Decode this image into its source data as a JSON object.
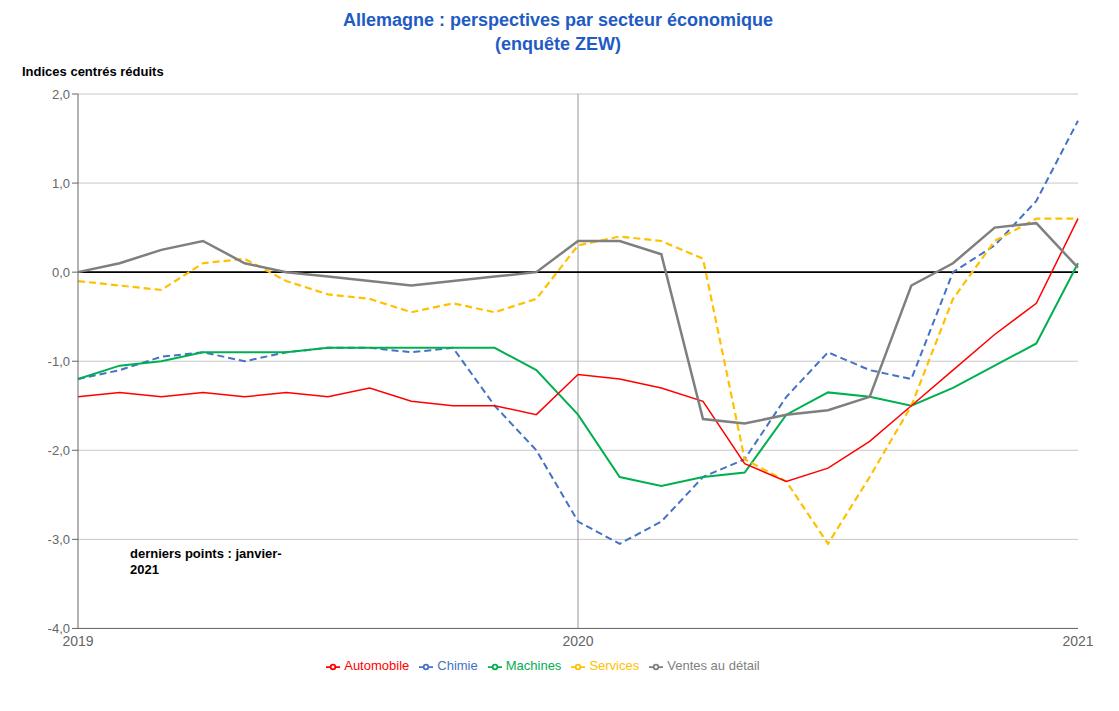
{
  "chart_data": {
    "type": "line",
    "title": "Allemagne : perspectives par secteur économique\n(enquête ZEW)",
    "y_label": "Indices centrés réduits",
    "annotation": "derniers points : janvier-\n2021",
    "title_color": "#1F5BC4",
    "categories": [
      "2019",
      null,
      null,
      null,
      null,
      null,
      null,
      null,
      null,
      null,
      null,
      null,
      "2020",
      null,
      null,
      null,
      null,
      null,
      null,
      null,
      null,
      null,
      null,
      null,
      "2021"
    ],
    "series": [
      {
        "name": "Chimie",
        "color": "#4472C4",
        "line_style": "dashed",
        "values": [
          -1.2,
          -1.1,
          -0.95,
          -0.9,
          -1.0,
          -0.9,
          -0.85,
          -0.85,
          -0.9,
          -0.85,
          -1.5,
          -2.0,
          -2.8,
          -3.05,
          -2.8,
          -2.3,
          -2.1,
          -1.4,
          -0.9,
          -1.1,
          -1.2,
          0.0,
          0.3,
          0.8,
          1.7
        ]
      },
      {
        "name": "Machines",
        "color": "#00B050",
        "line_style": "solid",
        "values": [
          -1.2,
          -1.05,
          -1.0,
          -0.9,
          -0.9,
          -0.9,
          -0.85,
          -0.85,
          -0.85,
          -0.85,
          -0.85,
          -1.1,
          -1.6,
          -2.3,
          -2.4,
          -2.3,
          -2.25,
          -1.6,
          -1.35,
          -1.4,
          -1.5,
          -1.3,
          -1.05,
          -0.8,
          0.1
        ]
      },
      {
        "name": "Services",
        "color": "#FFC000",
        "line_style": "dashed",
        "values": [
          -0.1,
          -0.15,
          -0.2,
          0.1,
          0.15,
          -0.1,
          -0.25,
          -0.3,
          -0.45,
          -0.35,
          -0.45,
          -0.3,
          0.3,
          0.4,
          0.35,
          0.15,
          -2.1,
          -2.35,
          -3.05,
          -2.3,
          -1.5,
          -0.3,
          0.35,
          0.6,
          0.6
        ]
      },
      {
        "name": "Automobile",
        "color": "#FF0000",
        "line_style": "solid",
        "values": [
          -1.4,
          -1.35,
          -1.4,
          -1.35,
          -1.4,
          -1.35,
          -1.4,
          -1.3,
          -1.45,
          -1.5,
          -1.5,
          -1.6,
          -1.15,
          -1.2,
          -1.3,
          -1.45,
          -2.15,
          -2.35,
          -2.2,
          -1.9,
          -1.5,
          -1.1,
          -0.7,
          -0.35,
          0.6
        ]
      },
      {
        "name": "Ventes au détail",
        "color": "#7F7F7F",
        "line_style": "solid",
        "values": [
          0.0,
          0.1,
          0.25,
          0.35,
          0.1,
          0.0,
          -0.05,
          -0.1,
          -0.15,
          -0.1,
          -0.05,
          0.0,
          0.35,
          0.35,
          0.2,
          -1.65,
          -1.7,
          -1.6,
          -1.55,
          -1.4,
          -0.15,
          0.1,
          0.5,
          0.55,
          0.05
        ]
      }
    ],
    "ylim": [
      -4.0,
      2.0
    ],
    "yticks": [
      {
        "value": -4.0,
        "label": "-4,0"
      },
      {
        "value": -3.0,
        "label": "-3,0"
      },
      {
        "value": -2.0,
        "label": "-2,0"
      },
      {
        "value": -1.0,
        "label": "-1,0"
      },
      {
        "value": 0.0,
        "label": "0,0"
      },
      {
        "value": 1.0,
        "label": "1,0"
      },
      {
        "value": 2.0,
        "label": "2,0"
      }
    ],
    "grid": true,
    "legend": "bottom",
    "vline": "2020",
    "hline": 0
  }
}
